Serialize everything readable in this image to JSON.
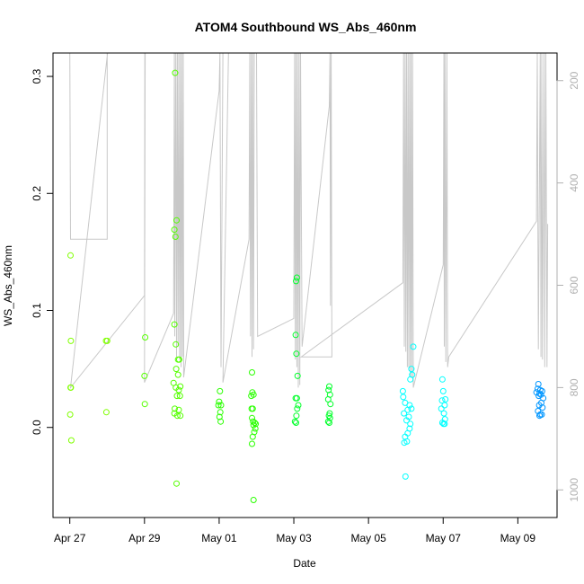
{
  "chart_data": {
    "type": "scatter",
    "title": "ATOM4 Southbound WS_Abs_460nm",
    "xlabel": "Date",
    "ylabel": "WS_Abs_460nm",
    "x_unit": "days",
    "x_ticks": [
      {
        "label": "Apr 27",
        "day": 0
      },
      {
        "label": "Apr 29",
        "day": 2
      },
      {
        "label": "May 01",
        "day": 4
      },
      {
        "label": "May 03",
        "day": 6
      },
      {
        "label": "May 05",
        "day": 8
      },
      {
        "label": "May 07",
        "day": 10
      },
      {
        "label": "May 09",
        "day": 12
      }
    ],
    "xlim": [
      -0.45,
      13.05
    ],
    "ylim": [
      -0.077,
      0.32
    ],
    "y_ticks": [
      0.0,
      0.1,
      0.2,
      0.3
    ],
    "y2_ticks": [
      200,
      400,
      600,
      800,
      1000
    ],
    "y2lim": [
      1054,
      146
    ],
    "y2_reversed": true,
    "grid": false,
    "series": [
      {
        "color": "#80ff00",
        "points": [
          [
            0.02,
            0.147
          ],
          [
            0.03,
            0.074
          ],
          [
            0.02,
            0.034
          ],
          [
            0.03,
            0.034
          ],
          [
            0.01,
            0.011
          ],
          [
            0.04,
            -0.011
          ],
          [
            0.97,
            0.074
          ],
          [
            1.0,
            0.074
          ],
          [
            0.98,
            0.013
          ]
        ]
      },
      {
        "color": "#55ff00",
        "points": [
          [
            2.02,
            0.077
          ],
          [
            2.0,
            0.044
          ],
          [
            2.01,
            0.02
          ],
          [
            2.82,
            0.303
          ],
          [
            2.8,
            0.169
          ],
          [
            2.83,
            0.163
          ],
          [
            2.86,
            0.177
          ],
          [
            2.8,
            0.088
          ],
          [
            2.84,
            0.071
          ],
          [
            2.9,
            0.058
          ],
          [
            2.93,
            0.058
          ],
          [
            2.85,
            0.05
          ],
          [
            2.9,
            0.045
          ],
          [
            2.78,
            0.038
          ],
          [
            2.84,
            0.034
          ],
          [
            2.96,
            0.035
          ],
          [
            2.92,
            0.032
          ],
          [
            2.87,
            0.027
          ],
          [
            2.95,
            0.027
          ],
          [
            2.81,
            0.016
          ],
          [
            2.92,
            0.015
          ],
          [
            2.8,
            0.012
          ],
          [
            2.88,
            0.01
          ],
          [
            2.96,
            0.01
          ],
          [
            2.86,
            -0.048
          ]
        ]
      },
      {
        "color": "#2aff00",
        "points": [
          [
            4.02,
            0.031
          ],
          [
            4.0,
            0.022
          ],
          [
            4.05,
            0.019
          ],
          [
            3.98,
            0.019
          ],
          [
            4.03,
            0.013
          ],
          [
            4.01,
            0.009
          ],
          [
            4.04,
            0.005
          ],
          [
            4.88,
            0.047
          ],
          [
            4.89,
            0.03
          ],
          [
            4.92,
            0.028
          ],
          [
            4.86,
            0.027
          ],
          [
            4.9,
            0.016
          ],
          [
            4.87,
            0.016
          ],
          [
            4.88,
            0.008
          ],
          [
            4.91,
            0.005
          ],
          [
            4.95,
            0.004
          ],
          [
            4.98,
            0.003
          ],
          [
            4.92,
            0.002
          ],
          [
            4.97,
            -0.001
          ],
          [
            4.94,
            -0.004
          ],
          [
            4.9,
            -0.008
          ],
          [
            4.88,
            -0.014
          ],
          [
            4.92,
            -0.062
          ]
        ]
      },
      {
        "color": "#00ff2a",
        "points": [
          [
            6.08,
            0.128
          ],
          [
            6.06,
            0.125
          ],
          [
            6.05,
            0.079
          ],
          [
            6.07,
            0.063
          ],
          [
            6.1,
            0.044
          ],
          [
            6.08,
            0.025
          ],
          [
            6.05,
            0.025
          ],
          [
            6.12,
            0.019
          ],
          [
            6.09,
            0.016
          ],
          [
            6.07,
            0.01
          ],
          [
            6.03,
            0.005
          ],
          [
            6.06,
            0.004
          ],
          [
            6.95,
            0.035
          ],
          [
            6.93,
            0.032
          ],
          [
            6.97,
            0.028
          ],
          [
            6.92,
            0.024
          ],
          [
            6.98,
            0.02
          ],
          [
            6.96,
            0.012
          ],
          [
            6.94,
            0.01
          ],
          [
            6.97,
            0.008
          ],
          [
            6.92,
            0.005
          ],
          [
            6.95,
            0.004
          ]
        ]
      },
      {
        "color": "#00ffff",
        "points": [
          [
            8.92,
            0.031
          ],
          [
            8.93,
            0.026
          ],
          [
            9.2,
            0.069
          ],
          [
            9.15,
            0.05
          ],
          [
            9.17,
            0.045
          ],
          [
            9.12,
            0.041
          ],
          [
            8.98,
            0.021
          ],
          [
            9.1,
            0.019
          ],
          [
            9.15,
            0.016
          ],
          [
            9.05,
            0.015
          ],
          [
            8.95,
            0.012
          ],
          [
            9.08,
            0.009
          ],
          [
            9.02,
            0.006
          ],
          [
            9.12,
            0.003
          ],
          [
            9.1,
            -0.001
          ],
          [
            9.05,
            -0.005
          ],
          [
            8.98,
            -0.008
          ],
          [
            9.03,
            -0.012
          ],
          [
            8.96,
            -0.013
          ],
          [
            8.99,
            -0.042
          ],
          [
            9.98,
            0.041
          ],
          [
            10.0,
            0.031
          ],
          [
            10.06,
            0.024
          ],
          [
            9.97,
            0.023
          ],
          [
            10.04,
            0.019
          ],
          [
            9.95,
            0.016
          ],
          [
            10.02,
            0.012
          ],
          [
            10.05,
            0.007
          ],
          [
            9.98,
            0.004
          ],
          [
            10.01,
            0.003
          ],
          [
            10.04,
            0.003
          ]
        ]
      },
      {
        "color": "#0096ff",
        "points": [
          [
            12.55,
            0.037
          ],
          [
            12.53,
            0.033
          ],
          [
            12.6,
            0.032
          ],
          [
            12.65,
            0.031
          ],
          [
            12.5,
            0.03
          ],
          [
            12.58,
            0.029
          ],
          [
            12.62,
            0.028
          ],
          [
            12.56,
            0.027
          ],
          [
            12.68,
            0.025
          ],
          [
            12.63,
            0.021
          ],
          [
            12.57,
            0.019
          ],
          [
            12.66,
            0.017
          ],
          [
            12.54,
            0.014
          ],
          [
            12.6,
            0.011
          ],
          [
            12.64,
            0.011
          ],
          [
            12.58,
            0.01
          ]
        ]
      }
    ],
    "altitude_line": {
      "color": "#c8c8c8",
      "points": [
        [
          0.0,
          100
        ],
        [
          0.02,
          510
        ],
        [
          1.0,
          510
        ],
        [
          1.0,
          100
        ],
        [
          1.01,
          100
        ],
        [
          0.02,
          800
        ],
        [
          2.0,
          620
        ],
        [
          2.01,
          100
        ],
        [
          2.02,
          100
        ],
        [
          2.0,
          790
        ],
        [
          2.78,
          655
        ],
        [
          2.8,
          100
        ],
        [
          2.81,
          700
        ],
        [
          2.84,
          100
        ],
        [
          2.86,
          740
        ],
        [
          2.88,
          100
        ],
        [
          2.9,
          720
        ],
        [
          2.92,
          100
        ],
        [
          2.94,
          745
        ],
        [
          2.96,
          100
        ],
        [
          2.98,
          760
        ],
        [
          3.0,
          100
        ],
        [
          3.02,
          740
        ],
        [
          3.04,
          100
        ],
        [
          3.05,
          780
        ],
        [
          4.0,
          220
        ],
        [
          4.02,
          100
        ],
        [
          4.05,
          760
        ],
        [
          4.1,
          110
        ],
        [
          4.25,
          100
        ],
        [
          4.1,
          790
        ],
        [
          4.8,
          510
        ],
        [
          4.82,
          100
        ],
        [
          4.84,
          700
        ],
        [
          4.86,
          100
        ],
        [
          4.88,
          740
        ],
        [
          4.9,
          100
        ],
        [
          4.92,
          725
        ],
        [
          4.94,
          100
        ],
        [
          4.96,
          100
        ],
        [
          4.98,
          100
        ],
        [
          5.0,
          100
        ],
        [
          5.03,
          700
        ],
        [
          6.0,
          665
        ],
        [
          6.02,
          100
        ],
        [
          6.04,
          745
        ],
        [
          6.06,
          100
        ],
        [
          6.08,
          760
        ],
        [
          6.1,
          100
        ],
        [
          6.12,
          800
        ],
        [
          6.14,
          100
        ],
        [
          6.16,
          795
        ],
        [
          6.18,
          100
        ],
        [
          6.22,
          720
        ],
        [
          6.95,
          250
        ],
        [
          6.97,
          100
        ],
        [
          6.98,
          640
        ],
        [
          7.0,
          100
        ],
        [
          7.02,
          740
        ],
        [
          6.2,
          740
        ],
        [
          8.92,
          595
        ],
        [
          8.94,
          100
        ],
        [
          8.96,
          720
        ],
        [
          8.98,
          100
        ],
        [
          9.0,
          730
        ],
        [
          9.02,
          100
        ],
        [
          9.04,
          760
        ],
        [
          9.06,
          100
        ],
        [
          9.08,
          760
        ],
        [
          9.1,
          100
        ],
        [
          9.12,
          780
        ],
        [
          9.14,
          100
        ],
        [
          9.16,
          780
        ],
        [
          9.18,
          100
        ],
        [
          9.2,
          800
        ],
        [
          10.0,
          560
        ],
        [
          10.02,
          100
        ],
        [
          10.03,
          720
        ],
        [
          10.05,
          100
        ],
        [
          10.07,
          750
        ],
        [
          10.1,
          100
        ],
        [
          10.12,
          760
        ],
        [
          10.15,
          740
        ],
        [
          12.5,
          475
        ],
        [
          12.52,
          100
        ],
        [
          12.55,
          725
        ],
        [
          12.6,
          100
        ],
        [
          12.62,
          740
        ],
        [
          12.64,
          100
        ],
        [
          12.66,
          745
        ],
        [
          12.7,
          100
        ],
        [
          12.72,
          760
        ],
        [
          12.75,
          100
        ],
        [
          12.78,
          760
        ],
        [
          12.8,
          480
        ]
      ]
    }
  }
}
